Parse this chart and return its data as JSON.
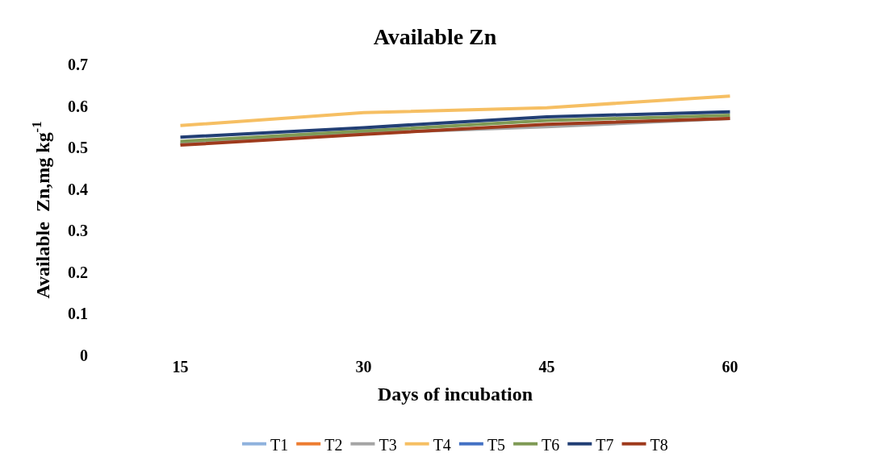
{
  "chart_data": {
    "type": "line",
    "title": "Available Zn",
    "xlabel": "Days of incubation",
    "ylabel": "Available  Zn,mg kg$^{-1}$",
    "categories": [
      "15",
      "30",
      "45",
      "60"
    ],
    "series": [
      {
        "name": "T1",
        "color": "#8fb2dd",
        "values": [
          null,
          null,
          null,
          null
        ]
      },
      {
        "name": "T2",
        "color": "#ed7d31",
        "values": [
          null,
          null,
          null,
          null
        ]
      },
      {
        "name": "T3",
        "color": "#a5a5a5",
        "values": [
          0.51,
          0.535,
          0.55,
          0.57
        ]
      },
      {
        "name": "T4",
        "color": "#f6bf63",
        "values": [
          0.553,
          0.584,
          0.596,
          0.624
        ]
      },
      {
        "name": "T5",
        "color": "#4472c4",
        "values": [
          null,
          null,
          null,
          null
        ]
      },
      {
        "name": "T6",
        "color": "#7f9a55",
        "values": [
          0.515,
          0.54,
          0.565,
          0.578
        ]
      },
      {
        "name": "T7",
        "color": "#223f75",
        "values": [
          0.525,
          0.548,
          0.574,
          0.586
        ]
      },
      {
        "name": "T8",
        "color": "#9e3a1c",
        "values": [
          0.506,
          0.532,
          0.556,
          0.57
        ]
      }
    ],
    "ylim": [
      0,
      0.7
    ],
    "yticks": [
      0,
      0.1,
      0.2,
      0.3,
      0.4,
      0.5,
      0.6,
      0.7
    ],
    "legend": "bottom",
    "marker": "none",
    "line_style": "solid"
  }
}
